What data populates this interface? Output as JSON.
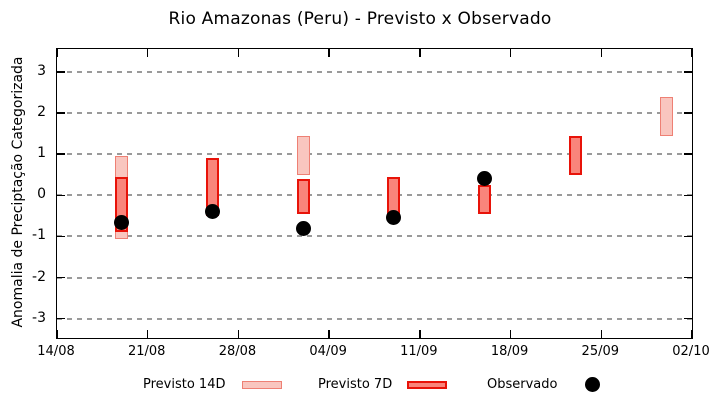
{
  "title": "Rio Amazonas (Peru) - Previsto x Observado",
  "axes": {
    "y_label": "Anomalia de Preciptação Categorizada",
    "y_ticks": [
      "3",
      "2",
      "1",
      "0",
      "-1",
      "-2",
      "-3"
    ],
    "x_ticks": [
      "14/08",
      "21/08",
      "28/08",
      "04/09",
      "11/09",
      "18/09",
      "25/09",
      "02/10"
    ]
  },
  "legend": {
    "previsto14_label": "Previsto 14D",
    "previsto7_label": "Previsto 7D",
    "observado_label": "Observado"
  },
  "colors": {
    "previsto14_fill": "#f9c6bf",
    "previsto14_border": "#ee8074",
    "previsto7_fill": "#f9857b",
    "previsto7_border": "#e81309",
    "observado": "#000000",
    "gridline": "#9a9a9a",
    "axis": "#000000"
  },
  "chart_data": {
    "type": "bar",
    "subtype": "floating-range-bars-with-scatter",
    "title": "Rio Amazonas (Peru) - Previsto x Observado",
    "xlabel": "",
    "ylabel": "Anomalia de Preciptação Categorizada",
    "ylim": [
      -3.47,
      3.56
    ],
    "grid": true,
    "y_gridlines": [
      3,
      2,
      1,
      0,
      -1,
      -2,
      -3
    ],
    "x_axis": {
      "tick_labels": [
        "14/08",
        "21/08",
        "28/08",
        "04/09",
        "11/09",
        "18/09",
        "25/09",
        "02/10"
      ],
      "tick_days": [
        0,
        7,
        14,
        21,
        28,
        35,
        42,
        49
      ],
      "span_days": 49
    },
    "legend_position": "bottom",
    "series": [
      {
        "name": "Previsto 14D",
        "kind": "range-bar",
        "fill": "#f9c6bf",
        "border": "#ee8074",
        "border_px": 1.5,
        "points": [
          {
            "date": "19/08",
            "day": 5,
            "low": -1.05,
            "high": 0.95
          },
          {
            "date": "02/09",
            "day": 19,
            "low": 0.5,
            "high": 1.45
          },
          {
            "date": "30/09",
            "day": 47,
            "low": 1.45,
            "high": 2.4
          }
        ]
      },
      {
        "name": "Previsto 7D",
        "kind": "range-bar",
        "fill": "#f9857b",
        "border": "#e81309",
        "border_px": 2,
        "points": [
          {
            "date": "19/08",
            "day": 5,
            "low": -0.9,
            "high": 0.45
          },
          {
            "date": "26/08",
            "day": 12,
            "low": -0.5,
            "high": 0.9
          },
          {
            "date": "02/09",
            "day": 19,
            "low": -0.45,
            "high": 0.4
          },
          {
            "date": "09/09",
            "day": 26,
            "low": -0.45,
            "high": 0.45
          },
          {
            "date": "16/09",
            "day": 33,
            "low": -0.45,
            "high": 0.25
          },
          {
            "date": "23/09",
            "day": 40,
            "low": 0.5,
            "high": 1.45
          }
        ]
      },
      {
        "name": "Observado",
        "kind": "scatter",
        "color": "#000000",
        "points": [
          {
            "date": "19/08",
            "day": 5,
            "value": -0.65
          },
          {
            "date": "26/08",
            "day": 12,
            "value": -0.4
          },
          {
            "date": "02/09",
            "day": 19,
            "value": -0.8
          },
          {
            "date": "09/09",
            "day": 26,
            "value": -0.55
          },
          {
            "date": "16/09",
            "day": 33,
            "value": 0.4
          }
        ]
      }
    ]
  }
}
